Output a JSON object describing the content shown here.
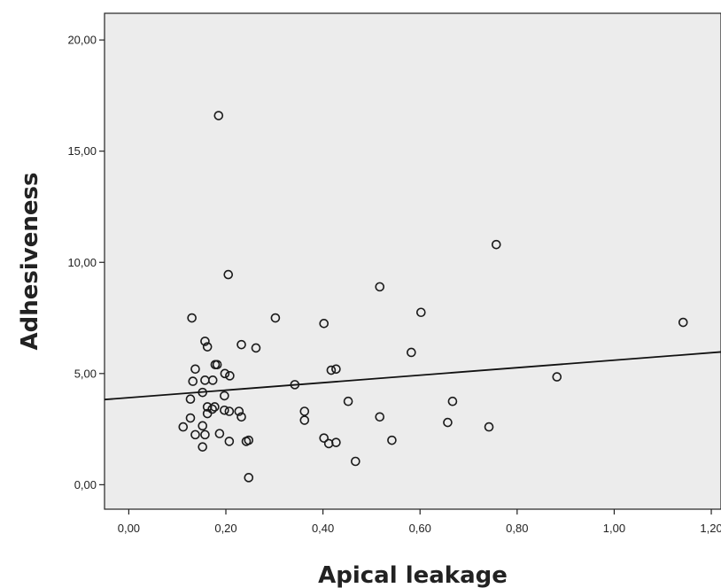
{
  "chart_data": {
    "type": "scatter",
    "xlabel": "Apical leakage",
    "ylabel": "Adhesiveness",
    "xlim": [
      -0.05,
      1.22
    ],
    "ylim": [
      -1.1,
      21.2
    ],
    "xticks": [
      "0,00",
      "0,20",
      "0,40",
      "0,60",
      "0,80",
      "1,00",
      "1,20"
    ],
    "xtick_values": [
      0,
      0.2,
      0.4,
      0.6,
      0.8,
      1.0,
      1.2
    ],
    "yticks": [
      "0,00",
      "5,00",
      "10,00",
      "15,00",
      "20,00"
    ],
    "ytick_values": [
      0,
      5,
      10,
      15,
      20
    ],
    "grid": false,
    "plot_background": "#ececec",
    "points": [
      [
        0.185,
        16.6
      ],
      [
        0.205,
        9.45
      ],
      [
        0.13,
        7.5
      ],
      [
        0.157,
        6.45
      ],
      [
        0.162,
        6.2
      ],
      [
        0.137,
        5.2
      ],
      [
        0.178,
        5.4
      ],
      [
        0.182,
        5.4
      ],
      [
        0.198,
        5.0
      ],
      [
        0.208,
        4.9
      ],
      [
        0.157,
        4.7
      ],
      [
        0.173,
        4.7
      ],
      [
        0.132,
        4.65
      ],
      [
        0.152,
        4.15
      ],
      [
        0.197,
        4.0
      ],
      [
        0.127,
        3.85
      ],
      [
        0.162,
        3.5
      ],
      [
        0.177,
        3.5
      ],
      [
        0.172,
        3.4
      ],
      [
        0.162,
        3.2
      ],
      [
        0.197,
        3.35
      ],
      [
        0.207,
        3.3
      ],
      [
        0.227,
        3.3
      ],
      [
        0.232,
        3.05
      ],
      [
        0.127,
        3.0
      ],
      [
        0.112,
        2.6
      ],
      [
        0.152,
        2.65
      ],
      [
        0.137,
        2.25
      ],
      [
        0.157,
        2.25
      ],
      [
        0.187,
        2.3
      ],
      [
        0.207,
        1.95
      ],
      [
        0.242,
        1.95
      ],
      [
        0.247,
        2.0
      ],
      [
        0.152,
        1.7
      ],
      [
        0.247,
        0.32
      ],
      [
        0.232,
        6.3
      ],
      [
        0.262,
        6.15
      ],
      [
        0.302,
        7.5
      ],
      [
        0.342,
        4.5
      ],
      [
        0.362,
        3.3
      ],
      [
        0.362,
        2.9
      ],
      [
        0.402,
        7.25
      ],
      [
        0.417,
        5.15
      ],
      [
        0.427,
        5.2
      ],
      [
        0.452,
        3.75
      ],
      [
        0.402,
        2.1
      ],
      [
        0.412,
        1.85
      ],
      [
        0.427,
        1.9
      ],
      [
        0.467,
        1.05
      ],
      [
        0.517,
        8.9
      ],
      [
        0.517,
        3.05
      ],
      [
        0.542,
        2.0
      ],
      [
        0.582,
        5.95
      ],
      [
        0.602,
        7.75
      ],
      [
        0.657,
        2.8
      ],
      [
        0.667,
        3.75
      ],
      [
        0.742,
        2.6
      ],
      [
        0.757,
        10.8
      ],
      [
        0.882,
        4.85
      ],
      [
        1.142,
        7.3
      ]
    ],
    "fit_line": {
      "x": [
        -0.05,
        1.22
      ],
      "y": [
        3.83,
        5.97
      ]
    }
  }
}
